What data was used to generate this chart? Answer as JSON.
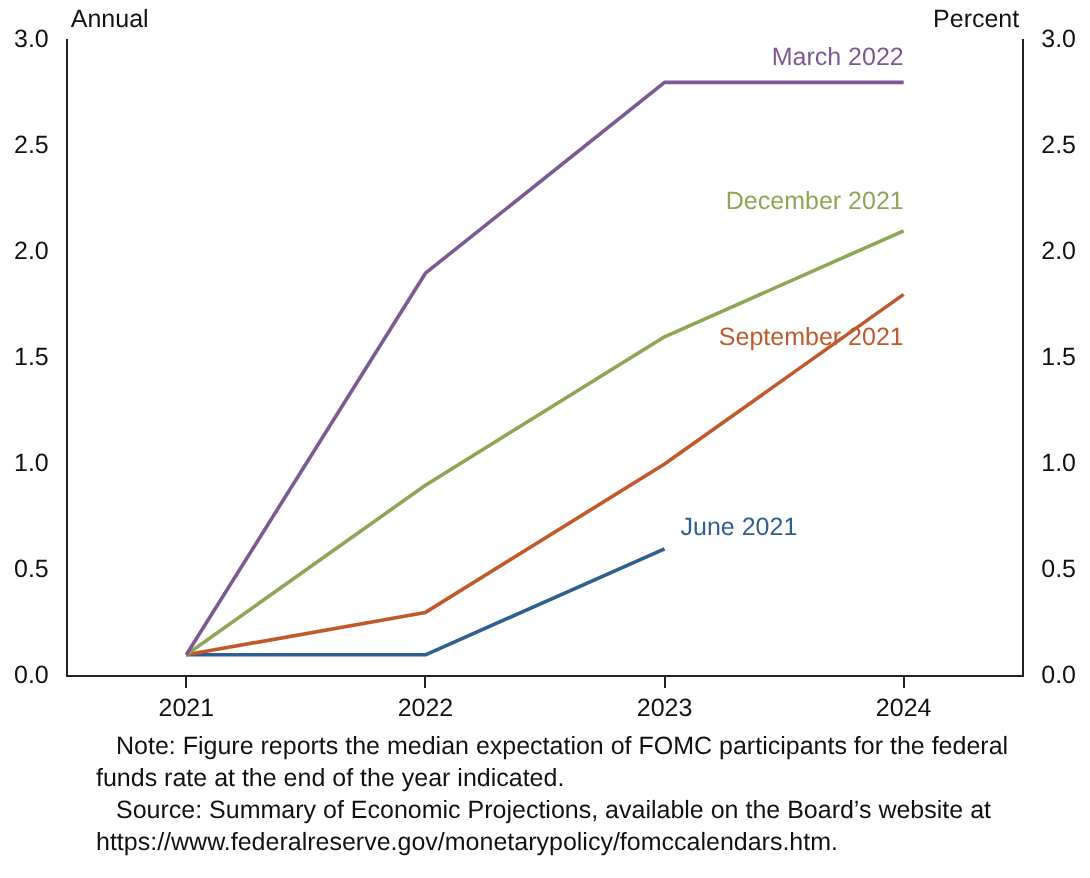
{
  "chart_data": {
    "type": "line",
    "ylabel": "Annual",
    "y2label": "Percent",
    "categories": [
      "2021",
      "2022",
      "2023",
      "2024"
    ],
    "series": [
      {
        "name": "March 2022",
        "color": "#7b5a94",
        "values": [
          0.1,
          1.9,
          2.8,
          2.8
        ]
      },
      {
        "name": "December 2021",
        "color": "#8fa556",
        "values": [
          0.1,
          0.9,
          1.6,
          2.1
        ]
      },
      {
        "name": "September 2021",
        "color": "#c0592b",
        "values": [
          0.1,
          0.3,
          1.0,
          1.8
        ]
      },
      {
        "name": "June 2021",
        "color": "#2f5f8f",
        "values": [
          0.1,
          0.1,
          0.6,
          null
        ]
      }
    ],
    "ylim": [
      0,
      3
    ],
    "yticks": [
      {
        "value": 0,
        "label": "0.0"
      },
      {
        "value": 0.5,
        "label": "0.5"
      },
      {
        "value": 1,
        "label": "1.0"
      },
      {
        "value": 1.5,
        "label": "1.5"
      },
      {
        "value": 2,
        "label": "2.0"
      },
      {
        "value": 2.5,
        "label": "2.5"
      },
      {
        "value": 3,
        "label": "3.0"
      }
    ],
    "y2lim": [
      0,
      3
    ],
    "y2ticks": [
      {
        "value": 0,
        "label": "0.0"
      },
      {
        "value": 0.5,
        "label": "0.5"
      },
      {
        "value": 1,
        "label": "1.0"
      },
      {
        "value": 1.5,
        "label": "1.5"
      },
      {
        "value": 2,
        "label": "2.0"
      },
      {
        "value": 2.5,
        "label": "2.5"
      },
      {
        "value": 3,
        "label": "3.0"
      }
    ],
    "grid": false,
    "legend": false,
    "marker": "none",
    "line_style": "solid",
    "annotations": [
      "Note: Figure reports the median expectation of FOMC participants for the federal funds rate at the end of the year indicated.",
      "Source: Summary of Economic Projections, available on the Board’s website at https://www.federalreserve.gov/monetarypolicy/fomccalendars.htm."
    ]
  }
}
